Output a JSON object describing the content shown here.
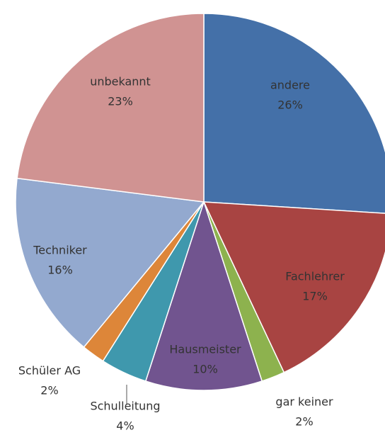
{
  "chart_data": {
    "type": "pie",
    "categories": [
      "andere",
      "Fachlehrer",
      "gar keiner",
      "Hausmeister",
      "Schulleitung",
      "Schüler AG",
      "Techniker",
      "unbekannt"
    ],
    "values": [
      26,
      17,
      2,
      10,
      4,
      2,
      16,
      23
    ],
    "value_labels": [
      "26%",
      "17%",
      "2%",
      "10%",
      "4%",
      "2%",
      "16%",
      "23%"
    ],
    "colors": [
      "#4470a8",
      "#a84442",
      "#8db24e",
      "#71548f",
      "#3f98ad",
      "#dd8639",
      "#93a9cf",
      "#d09392"
    ]
  }
}
